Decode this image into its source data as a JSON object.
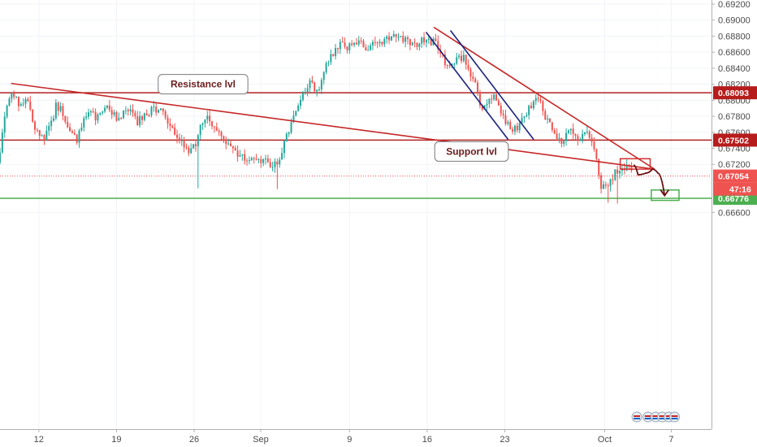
{
  "chart_data": {
    "type": "candlestick",
    "yaxis": {
      "ylim": [
        0.665,
        0.6925
      ],
      "ticks": [
        "0.69200",
        "0.69000",
        "0.68800",
        "0.68600",
        "0.68400",
        "0.68200",
        "0.68000",
        "0.67800",
        "0.67600",
        "0.67400",
        "0.67200",
        "0.66600"
      ],
      "tick_values": [
        0.692,
        0.69,
        0.688,
        0.686,
        0.684,
        0.682,
        0.68,
        0.678,
        0.676,
        0.674,
        0.672,
        0.666
      ]
    },
    "xaxis": {
      "labels": [
        {
          "text": "12",
          "day": 12
        },
        {
          "text": "19",
          "day": 19
        },
        {
          "text": "26",
          "day": 26
        },
        {
          "text": "Sep",
          "day": 32
        },
        {
          "text": "9",
          "day": 40
        },
        {
          "text": "16",
          "day": 47
        },
        {
          "text": "23",
          "day": 54
        },
        {
          "text": "Oct",
          "day": 63
        },
        {
          "text": "7",
          "day": 69
        }
      ],
      "range_days": [
        8.5,
        73.5
      ]
    },
    "price_path": [
      [
        8.5,
        0.6722
      ],
      [
        9.2,
        0.6785
      ],
      [
        9.8,
        0.6812
      ],
      [
        10.5,
        0.6795
      ],
      [
        11.2,
        0.6802
      ],
      [
        11.8,
        0.677
      ],
      [
        12.5,
        0.6752
      ],
      [
        13.2,
        0.6764
      ],
      [
        13.8,
        0.6795
      ],
      [
        14.4,
        0.6784
      ],
      [
        15.0,
        0.676
      ],
      [
        15.6,
        0.6748
      ],
      [
        16.2,
        0.6772
      ],
      [
        16.8,
        0.6786
      ],
      [
        17.5,
        0.6776
      ],
      [
        18.2,
        0.679
      ],
      [
        18.9,
        0.6782
      ],
      [
        19.5,
        0.6779
      ],
      [
        20.3,
        0.6787
      ],
      [
        21.0,
        0.6773
      ],
      [
        21.8,
        0.6779
      ],
      [
        22.6,
        0.6791
      ],
      [
        23.3,
        0.6784
      ],
      [
        24.0,
        0.6764
      ],
      [
        24.6,
        0.6756
      ],
      [
        25.2,
        0.6746
      ],
      [
        25.9,
        0.6734
      ],
      [
        26.4,
        0.675
      ],
      [
        27.2,
        0.6781
      ],
      [
        27.9,
        0.6771
      ],
      [
        28.6,
        0.6756
      ],
      [
        29.3,
        0.6744
      ],
      [
        30.0,
        0.6737
      ],
      [
        30.7,
        0.6728
      ],
      [
        31.5,
        0.6733
      ],
      [
        32.3,
        0.6726
      ],
      [
        33.0,
        0.672
      ],
      [
        33.8,
        0.6722
      ],
      [
        34.5,
        0.6752
      ],
      [
        35.2,
        0.6782
      ],
      [
        35.9,
        0.68
      ],
      [
        36.6,
        0.682
      ],
      [
        37.3,
        0.6812
      ],
      [
        38.0,
        0.6838
      ],
      [
        38.7,
        0.686
      ],
      [
        39.4,
        0.6872
      ],
      [
        40.1,
        0.6864
      ],
      [
        40.8,
        0.6874
      ],
      [
        41.5,
        0.6868
      ],
      [
        42.2,
        0.6866
      ],
      [
        43.0,
        0.6872
      ],
      [
        43.7,
        0.688
      ],
      [
        44.5,
        0.6884
      ],
      [
        45.2,
        0.6874
      ],
      [
        46.0,
        0.687
      ],
      [
        46.8,
        0.6876
      ],
      [
        47.6,
        0.6873
      ],
      [
        48.3,
        0.6866
      ],
      [
        49.0,
        0.6842
      ],
      [
        49.7,
        0.6852
      ],
      [
        50.4,
        0.6854
      ],
      [
        51.1,
        0.6835
      ],
      [
        51.7,
        0.681
      ],
      [
        52.2,
        0.6784
      ],
      [
        52.7,
        0.68
      ],
      [
        53.2,
        0.6808
      ],
      [
        53.8,
        0.679
      ],
      [
        54.4,
        0.6772
      ],
      [
        55.0,
        0.6764
      ],
      [
        55.6,
        0.677
      ],
      [
        56.3,
        0.6788
      ],
      [
        56.9,
        0.6803
      ],
      [
        57.5,
        0.6795
      ],
      [
        58.1,
        0.6772
      ],
      [
        58.8,
        0.6752
      ],
      [
        59.5,
        0.6748
      ],
      [
        60.2,
        0.6766
      ],
      [
        60.9,
        0.6752
      ],
      [
        61.6,
        0.6766
      ],
      [
        62.2,
        0.6745
      ],
      [
        62.8,
        0.6695
      ],
      [
        63.4,
        0.669
      ],
      [
        64.0,
        0.6706
      ],
      [
        64.6,
        0.6712
      ],
      [
        65.2,
        0.6716
      ],
      [
        65.6,
        0.6713
      ]
    ],
    "lows": [
      {
        "day": 26.3,
        "price": 0.669
      },
      {
        "day": 33.5,
        "price": 0.6689
      },
      {
        "day": 63.3,
        "price": 0.6672
      },
      {
        "day": 64.2,
        "price": 0.6671
      }
    ],
    "horizontal_lines": [
      {
        "price": 0.68093,
        "label": "0.68093",
        "color": "#b22222"
      },
      {
        "price": 0.67502,
        "label": "0.67502",
        "color": "#b22222"
      },
      {
        "price": 0.66776,
        "label": "0.66776",
        "color": "#4caf50"
      }
    ],
    "current_price": {
      "price": 0.67054,
      "label": "0.67054",
      "countdown": "47:16",
      "color": "#ef5350"
    },
    "trendlines": [
      {
        "from": [
          9.5,
          0.6821
        ],
        "to": [
          67.5,
          0.6714
        ],
        "color": "#c62828"
      },
      {
        "from": [
          47.6,
          0.6891
        ],
        "to": [
          67.5,
          0.6714
        ],
        "color": "#c62828"
      },
      {
        "from": [
          46.9,
          0.6885
        ],
        "to": [
          54.3,
          0.6751
        ],
        "color": "#1a237e"
      },
      {
        "from": [
          49.1,
          0.6887
        ],
        "to": [
          56.6,
          0.6751
        ],
        "color": "#1a237e"
      }
    ],
    "projection": [
      [
        65.6,
        0.6719
      ],
      [
        66.0,
        0.6707
      ],
      [
        66.7,
        0.6709
      ],
      [
        67.3,
        0.6714
      ],
      [
        67.8,
        0.6709
      ],
      [
        68.4,
        0.6681
      ]
    ],
    "boxes": [
      {
        "from": [
          64.4,
          0.6727
        ],
        "to": [
          67.1,
          0.6714
        ],
        "color": "#d32f2f"
      },
      {
        "from": [
          67.2,
          0.6688
        ],
        "to": [
          69.7,
          0.6675
        ],
        "color": "#4caf50"
      }
    ],
    "callouts": [
      {
        "text": "Resistance lvl",
        "day": 26.8,
        "price": 0.682,
        "pointer": [
          28.6,
          0.681
        ]
      },
      {
        "text": "Support lvl",
        "day": 51.0,
        "price": 0.6736,
        "pointer": [
          50.2,
          0.6747
        ]
      }
    ]
  }
}
